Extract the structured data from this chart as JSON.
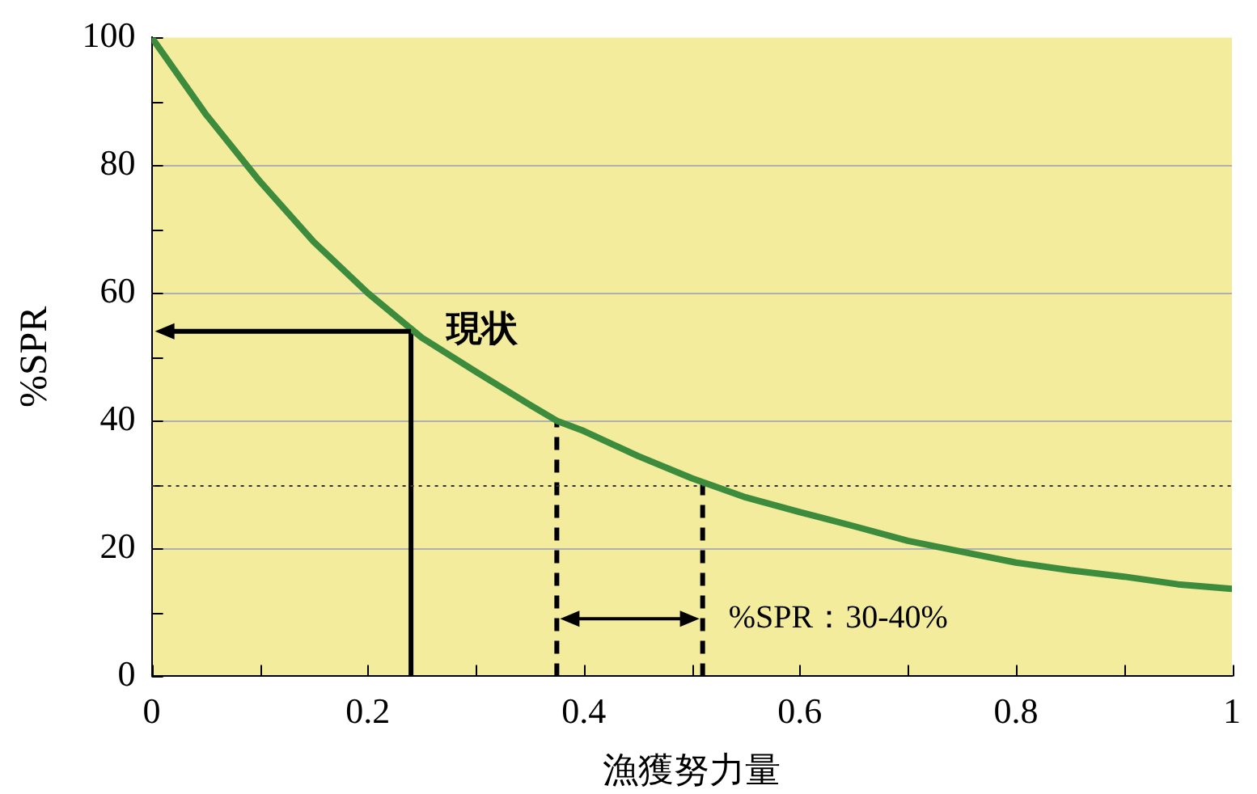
{
  "chart_data": {
    "type": "line",
    "xlabel": "漁獲努力量",
    "ylabel": "%SPR",
    "x": [
      0,
      0.05,
      0.1,
      0.15,
      0.2,
      0.25,
      0.3,
      0.35,
      0.375,
      0.4,
      0.45,
      0.5,
      0.55,
      0.6,
      0.65,
      0.7,
      0.75,
      0.8,
      0.85,
      0.9,
      0.95,
      1
    ],
    "series": [
      {
        "color": "#3d8b3d",
        "values": [
          100,
          88,
          77.5,
          68,
          60,
          53,
          47.7,
          42.5,
          40,
          38.4,
          34.5,
          31,
          28,
          25.7,
          23.5,
          21.2,
          19.5,
          17.8,
          16.6,
          15.6,
          14.4,
          13.7
        ]
      }
    ],
    "xlim": [
      0,
      1
    ],
    "ylim": [
      0,
      100
    ],
    "xticks": [
      0,
      {
        "value": 0.1,
        "label": null
      },
      {
        "value": 0.2,
        "label": "0.2"
      },
      {
        "value": 0.3,
        "label": null
      },
      {
        "value": 0.4,
        "label": "0.4"
      },
      {
        "value": 0.5,
        "label": null
      },
      {
        "value": 0.6,
        "label": "0.6"
      },
      {
        "value": 0.7,
        "label": null
      },
      {
        "value": 0.8,
        "label": "0.8"
      },
      {
        "value": 0.9,
        "label": null
      },
      1
    ],
    "yticks": [
      0,
      {
        "value": 10,
        "label": null
      },
      20,
      {
        "value": 30,
        "label": null
      },
      40,
      {
        "value": 50,
        "label": null
      },
      60,
      {
        "value": 70,
        "label": null
      },
      80,
      {
        "value": 90,
        "label": null
      },
      100
    ],
    "grid": "y",
    "line_style": "solid",
    "marker": "none",
    "legend": false,
    "ref_lines": [
      {
        "axis": "x",
        "value": 0.24,
        "color": "#000000",
        "line_style": "solid"
      },
      {
        "axis": "x",
        "value": 0.375,
        "color": "#000000",
        "line_style": "dashed"
      },
      {
        "axis": "x",
        "value": 0.51,
        "color": "#000000",
        "line_style": "dashed"
      },
      {
        "axis": "y",
        "value": 30,
        "color": "#333333",
        "line_style": "dotted"
      }
    ],
    "annotations": [
      {
        "text": "現状",
        "x": 0.24,
        "y": 54
      },
      {
        "text": "%SPR：30-40%",
        "x": 0.51,
        "y": 9
      }
    ]
  }
}
